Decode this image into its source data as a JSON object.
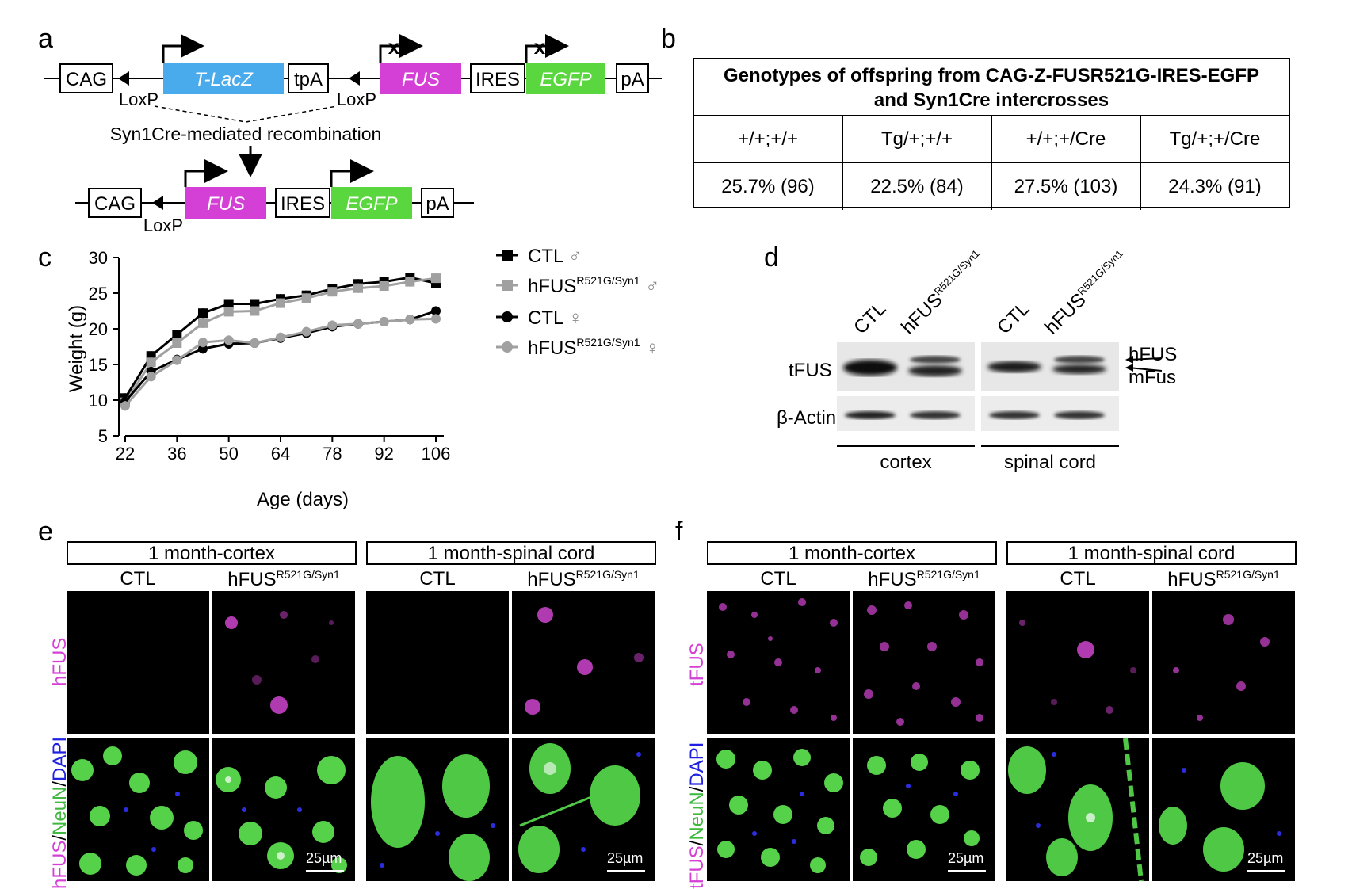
{
  "panel_letters": {
    "a": "a",
    "b": "b",
    "c": "c",
    "d": "d",
    "e": "e",
    "f": "f"
  },
  "construct": {
    "top": [
      "CAG",
      "T-LacZ",
      "tpA",
      "FUS",
      "IRES",
      "EGFP",
      "pA"
    ],
    "loxp1": "LoxP",
    "loxp2": "LoxP",
    "recombination": "Syn1Cre-mediated recombination",
    "bottom": [
      "CAG",
      "FUS",
      "IRES",
      "EGFP",
      "pA"
    ],
    "loxp3": "LoxP",
    "colors": {
      "lacz": "#4aabec",
      "fus": "#d43fd6",
      "egfp": "#5ad63f"
    }
  },
  "genotype_table": {
    "title_line1": "Genotypes of offspring from CAG-Z-FUSR521G-IRES-EGFP",
    "title_line2": "and Syn1Cre intercrosses",
    "headers": [
      "+/+;+/+",
      "Tg/+;+/+",
      "+/+;+/Cre",
      "Tg/+;+/Cre"
    ],
    "values": [
      "25.7% (96)",
      "22.5% (84)",
      "27.5% (103)",
      "24.3% (91)"
    ]
  },
  "chart_data": {
    "type": "line",
    "x": [
      22,
      29,
      36,
      43,
      50,
      57,
      64,
      71,
      78,
      85,
      92,
      99,
      106
    ],
    "xticks": [
      22,
      36,
      50,
      64,
      78,
      92,
      106
    ],
    "yticks": [
      5,
      10,
      15,
      20,
      25,
      30
    ],
    "xlabel": "Age (days)",
    "ylabel": "Weight (g)",
    "ylim": [
      5,
      30
    ],
    "xlim": [
      22,
      106
    ],
    "legend_position": "right",
    "series": [
      {
        "name": "CTL ♂",
        "marker": "square",
        "color": "#000000",
        "values": [
          10.3,
          16.2,
          19.2,
          22.2,
          23.5,
          23.5,
          24.2,
          24.7,
          25.6,
          26.3,
          26.6,
          27.2,
          26.4
        ]
      },
      {
        "name": "hFUS R521G/Syn1 ♂",
        "marker": "square",
        "color": "#a0a0a0",
        "values": [
          9.7,
          15.3,
          18.0,
          20.8,
          22.4,
          22.5,
          23.6,
          24.3,
          25.2,
          25.7,
          26.0,
          26.6,
          27.1
        ]
      },
      {
        "name": "CTL ♀",
        "marker": "circle",
        "color": "#000000",
        "values": [
          9.8,
          14.0,
          15.7,
          17.2,
          17.9,
          18.0,
          18.7,
          19.4,
          20.3,
          20.7,
          21.0,
          21.3,
          22.5
        ]
      },
      {
        "name": "hFUS R521G/Syn1 ♀",
        "marker": "circle",
        "color": "#a0a0a0",
        "values": [
          9.2,
          13.3,
          15.6,
          18.1,
          18.4,
          18.0,
          18.8,
          19.6,
          20.5,
          20.7,
          21.0,
          21.3,
          21.4
        ]
      }
    ],
    "legend": [
      {
        "main": "CTL",
        "sup": "",
        "sex": "♂"
      },
      {
        "main": "hFUS",
        "sup": "R521G/Syn1",
        "sex": "♂"
      },
      {
        "main": "CTL",
        "sup": "",
        "sex": "♀"
      },
      {
        "main": "hFUS",
        "sup": "R521G/Syn1",
        "sex": "♀"
      }
    ]
  },
  "western": {
    "lanes": [
      "CTL",
      "hFUS",
      "CTL",
      "hFUS"
    ],
    "lane_sup": "R521G/Syn1",
    "row_tfus": "tFUS",
    "row_actin": "β-Actin",
    "arrow_hfus": "hFUS",
    "arrow_mfus": "mFus",
    "tissue_cortex": "cortex",
    "tissue_spinal": "spinal cord"
  },
  "panel_e": {
    "region1": "1 month-cortex",
    "region2": "1 month-spinal cord",
    "col_ctl": "CTL",
    "col_hfus": "hFUS",
    "col_sup": "R521G/Syn1",
    "row1_label": "hFUS",
    "row2_label_a": "hFUS",
    "row2_label_b": "NeuN",
    "row2_label_c": "DAPI",
    "scale": "25µm"
  },
  "panel_f": {
    "region1": "1 month-cortex",
    "region2": "1 month-spinal cord",
    "col_ctl": "CTL",
    "col_hfus": "hFUS",
    "col_sup": "R521G/Syn1",
    "row1_label": "tFUS",
    "row2_label_a": "tFUS",
    "row2_label_b": "NeuN",
    "row2_label_c": "DAPI",
    "scale": "25µm"
  }
}
